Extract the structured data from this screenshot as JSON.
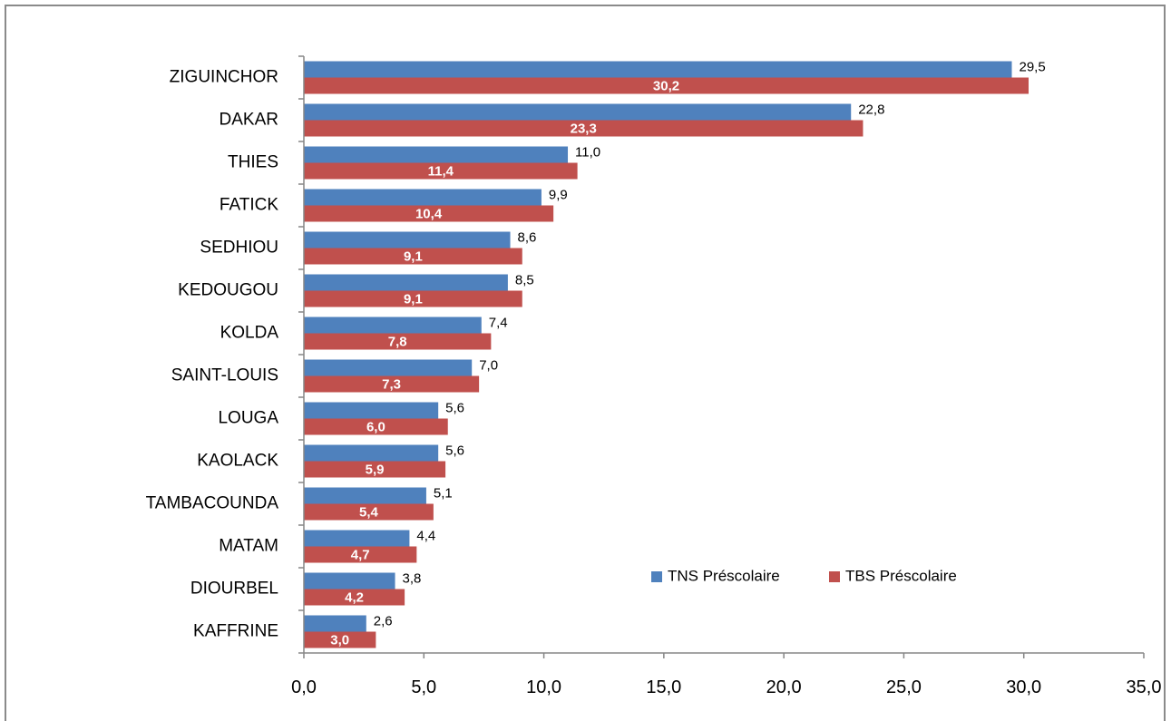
{
  "chart_data": {
    "type": "bar",
    "orientation": "horizontal",
    "categories": [
      "ZIGUINCHOR",
      "DAKAR",
      "THIES",
      "FATICK",
      "SEDHIOU",
      "KEDOUGOU",
      "KOLDA",
      "SAINT-LOUIS",
      "LOUGA",
      "KAOLACK",
      "TAMBACOUNDA",
      "MATAM",
      "DIOURBEL",
      "KAFFRINE"
    ],
    "series": [
      {
        "name": "TNS Préscolaire",
        "color": "#4f81bd",
        "values": [
          29.5,
          22.8,
          11.0,
          9.9,
          8.6,
          8.5,
          7.4,
          7.0,
          5.6,
          5.6,
          5.1,
          4.4,
          3.8,
          2.6
        ],
        "labels": [
          "29,5",
          "22,8",
          "11,0",
          "9,9",
          "8,6",
          "8,5",
          "7,4",
          "7,0",
          "5,6",
          "5,6",
          "5,1",
          "4,4",
          "3,8",
          "2,6"
        ]
      },
      {
        "name": "TBS Préscolaire",
        "color": "#c0504d",
        "values": [
          30.2,
          23.3,
          11.4,
          10.4,
          9.1,
          9.1,
          7.8,
          7.3,
          6.0,
          5.9,
          5.4,
          4.7,
          4.2,
          3.0
        ],
        "labels": [
          "30,2",
          "23,3",
          "11,4",
          "10,4",
          "9,1",
          "9,1",
          "7,8",
          "7,3",
          "6,0",
          "5,9",
          "5,4",
          "4,7",
          "4,2",
          "3,0"
        ]
      }
    ],
    "xlim": [
      0,
      35
    ],
    "xticks": [
      0,
      5,
      10,
      15,
      20,
      25,
      30,
      35
    ],
    "xtick_labels": [
      "0,0",
      "5,0",
      "10,0",
      "15,0",
      "20,0",
      "25,0",
      "30,0",
      "35,0"
    ],
    "title": "",
    "xlabel": "",
    "ylabel": "",
    "grid": false,
    "legend_position": "center-right"
  }
}
